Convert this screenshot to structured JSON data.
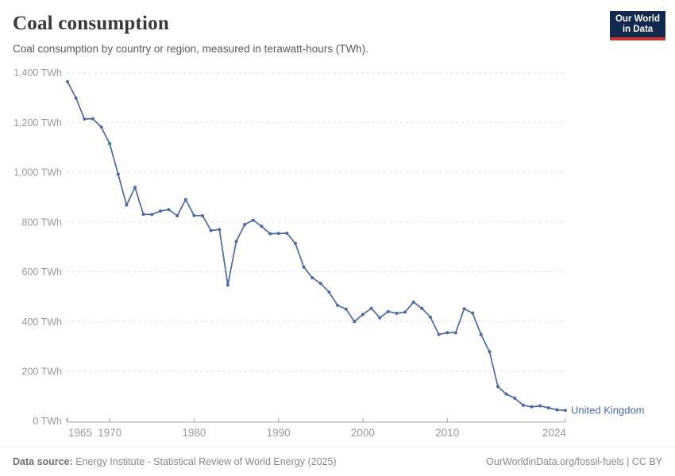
{
  "header": {
    "title": "Coal consumption",
    "subtitle": "Coal consumption by country or region, measured in terawatt-hours (TWh).",
    "logo": {
      "line1": "Our World",
      "line2": "in Data"
    }
  },
  "chart_data": {
    "type": "line",
    "title": "Coal consumption",
    "unit": "TWh",
    "xlabel": "",
    "ylabel": "",
    "xlim": [
      1965,
      2024
    ],
    "ylim": [
      0,
      1400
    ],
    "x_ticks": [
      1965,
      1970,
      1980,
      1990,
      2000,
      2010,
      2024
    ],
    "y_ticks": [
      0,
      200,
      400,
      600,
      800,
      1000,
      1200,
      1400
    ],
    "y_tick_suffix": " TWh",
    "grid": "horizontal-dashed",
    "legend_position": "end-of-line-label",
    "series": [
      {
        "name": "United Kingdom",
        "color": "#4a69a5",
        "x": [
          1965,
          1966,
          1967,
          1968,
          1969,
          1970,
          1971,
          1972,
          1973,
          1974,
          1975,
          1976,
          1977,
          1978,
          1979,
          1980,
          1981,
          1982,
          1983,
          1984,
          1985,
          1986,
          1987,
          1988,
          1989,
          1990,
          1991,
          1992,
          1993,
          1994,
          1995,
          1996,
          1997,
          1998,
          1999,
          2000,
          2001,
          2002,
          2003,
          2004,
          2005,
          2006,
          2007,
          2008,
          2009,
          2010,
          2011,
          2012,
          2013,
          2014,
          2015,
          2016,
          2017,
          2018,
          2019,
          2020,
          2021,
          2022,
          2023,
          2024
        ],
        "values": [
          1364,
          1299,
          1214,
          1215,
          1182,
          1115,
          992,
          868,
          939,
          831,
          830,
          844,
          850,
          825,
          890,
          826,
          825,
          766,
          770,
          547,
          722,
          790,
          807,
          783,
          753,
          754,
          755,
          714,
          619,
          576,
          553,
          518,
          465,
          450,
          400,
          428,
          453,
          415,
          440,
          433,
          438,
          478,
          453,
          417,
          348,
          355,
          355,
          451,
          434,
          348,
          279,
          138,
          108,
          92,
          63,
          57,
          61,
          53,
          45,
          43
        ]
      }
    ],
    "end_label": "United Kingdom"
  },
  "footer": {
    "source_label": "Data source:",
    "source_text": " Energy Institute - Statistical Review of World Energy (2025)",
    "link_text": "OurWorldinData.org/fossil-fuels | CC BY"
  },
  "colors": {
    "line": "#4a69a5",
    "gridline": "#dedede",
    "axis": "#a5a5a5",
    "tick_label": "#9a9a9a",
    "title": "#383838",
    "subtitle": "#5b5b5b",
    "logo_bg": "#12294e",
    "logo_stripe": "#cf312c"
  }
}
